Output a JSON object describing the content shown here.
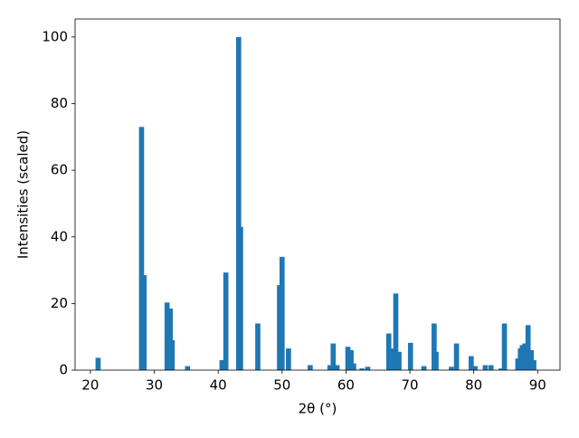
{
  "chart_data": {
    "type": "bar",
    "xlabel": "2θ (°)",
    "ylabel": "Intensities (scaled)",
    "color": "#1f77b4",
    "x": [
      21.2,
      28.0,
      28.4,
      32.0,
      32.5,
      32.8,
      35.2,
      40.6,
      41.2,
      43.2,
      43.5,
      46.2,
      49.6,
      50.0,
      51.0,
      54.4,
      57.5,
      58.0,
      58.6,
      60.3,
      60.8,
      61.2,
      62.5,
      63.4,
      66.7,
      67.1,
      67.3,
      67.8,
      68.3,
      70.1,
      72.2,
      73.8,
      74.1,
      76.5,
      77.3,
      79.6,
      80.2,
      81.8,
      82.7,
      84.3,
      84.8,
      86.9,
      87.3,
      87.6,
      88.0,
      88.5,
      89.0,
      89.4
    ],
    "values": [
      3.7,
      73,
      28.5,
      20.3,
      18.5,
      9,
      1.2,
      3,
      29.3,
      100,
      43,
      14,
      25.5,
      34,
      6.5,
      1.5,
      1.5,
      8,
      1.5,
      7,
      6,
      2,
      0.5,
      1,
      11,
      6.5,
      4,
      23,
      5.5,
      8.2,
      1.2,
      14,
      5.5,
      1,
      8,
      4.2,
      1.2,
      1.5,
      1.5,
      0.5,
      14,
      3.5,
      6.5,
      7.5,
      8,
      13.5,
      6,
      3
    ],
    "xlim": [
      17.6,
      93.5
    ],
    "ylim": [
      0,
      105.4
    ],
    "xticks": [
      20,
      30,
      40,
      50,
      60,
      70,
      80,
      90
    ],
    "yticks": [
      0,
      20,
      40,
      60,
      80,
      100
    ],
    "grid": false
  }
}
